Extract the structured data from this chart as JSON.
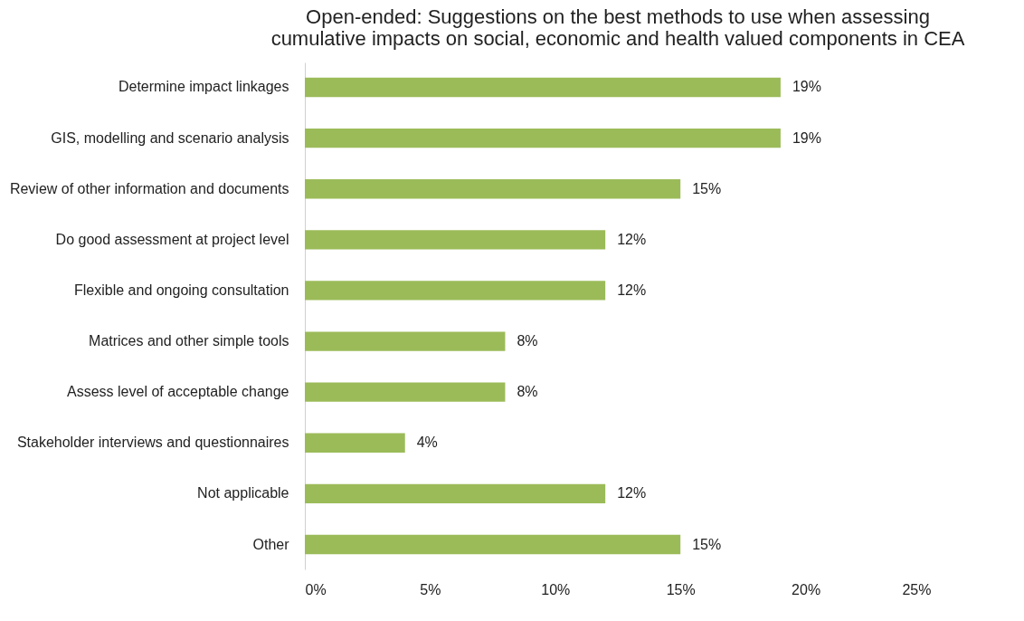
{
  "chart_data": {
    "type": "bar",
    "orientation": "horizontal",
    "title": "Open-ended: Suggestions on the best methods to use when assessing cumulative impacts on social, economic and health valued components in CEA",
    "categories": [
      "Determine impact linkages",
      "GIS, modelling and scenario analysis",
      "Review of other information and documents",
      "Do good assessment at project level",
      "Flexible and ongoing consultation",
      "Matrices and other simple tools",
      "Assess level of acceptable change",
      "Stakeholder interviews and questionnaires",
      "Not applicable",
      "Other"
    ],
    "values": [
      19,
      19,
      15,
      12,
      12,
      8,
      8,
      4,
      12,
      15
    ],
    "value_labels": [
      "19%",
      "19%",
      "15%",
      "12%",
      "12%",
      "8%",
      "8%",
      "4%",
      "12%",
      "15%"
    ],
    "color": "#9bbb59",
    "xlim": [
      0,
      25
    ],
    "xticks": [
      {
        "value": 0,
        "label": "0%"
      },
      {
        "value": 5,
        "label": "5%"
      },
      {
        "value": 10,
        "label": "10%"
      },
      {
        "value": 15,
        "label": "15%"
      },
      {
        "value": 20,
        "label": "20%"
      },
      {
        "value": 25,
        "label": "25%"
      }
    ],
    "grid": false
  }
}
